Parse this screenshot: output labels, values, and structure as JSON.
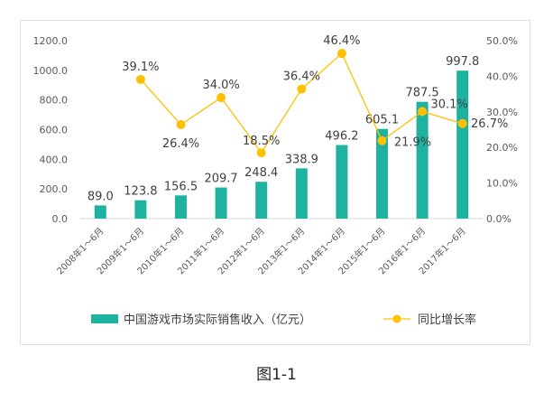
{
  "caption": "图1-1",
  "colors": {
    "bar": "#20b2a0",
    "line": "#ffc000",
    "marker": "#ffc000",
    "grid": "#e6e6e6"
  },
  "chart_data": {
    "type": "bar",
    "categories": [
      "2008年1～6月",
      "2009年1～6月",
      "2010年1～6月",
      "2011年1～6月",
      "2012年1～6月",
      "2013年1～6月",
      "2014年1～6月",
      "2015年1～6月",
      "2016年1～6月",
      "2017年1～6月"
    ],
    "series": [
      {
        "name": "中国游戏市场实际销售收入（亿元）",
        "type": "bar",
        "axis": "left",
        "values": [
          89.0,
          123.8,
          156.5,
          209.7,
          248.4,
          338.9,
          496.2,
          605.1,
          787.5,
          997.8
        ],
        "labels": [
          "89.0",
          "123.8",
          "156.5",
          "209.7",
          "248.4",
          "338.9",
          "496.2",
          "605.1",
          "787.5",
          "997.8"
        ]
      },
      {
        "name": "同比增长率",
        "type": "line",
        "axis": "right",
        "values": [
          null,
          39.1,
          26.4,
          34.0,
          18.5,
          36.4,
          46.4,
          21.9,
          30.1,
          26.7
        ],
        "labels": [
          "",
          "39.1%",
          "26.4%",
          "34.0%",
          "18.5%",
          "36.4%",
          "46.4%",
          "21.9%",
          "30.1%",
          "26.7%"
        ]
      }
    ],
    "y_left": {
      "min": 0,
      "max": 1200,
      "ticks": [
        "0.0",
        "200.0",
        "400.0",
        "600.0",
        "800.0",
        "1000.0",
        "1200.0"
      ]
    },
    "y_right": {
      "min": 0,
      "max": 50,
      "ticks": [
        "0.0%",
        "10.0%",
        "20.0%",
        "30.0%",
        "40.0%",
        "50.0%"
      ]
    },
    "grid": false,
    "legend": "bottom"
  }
}
